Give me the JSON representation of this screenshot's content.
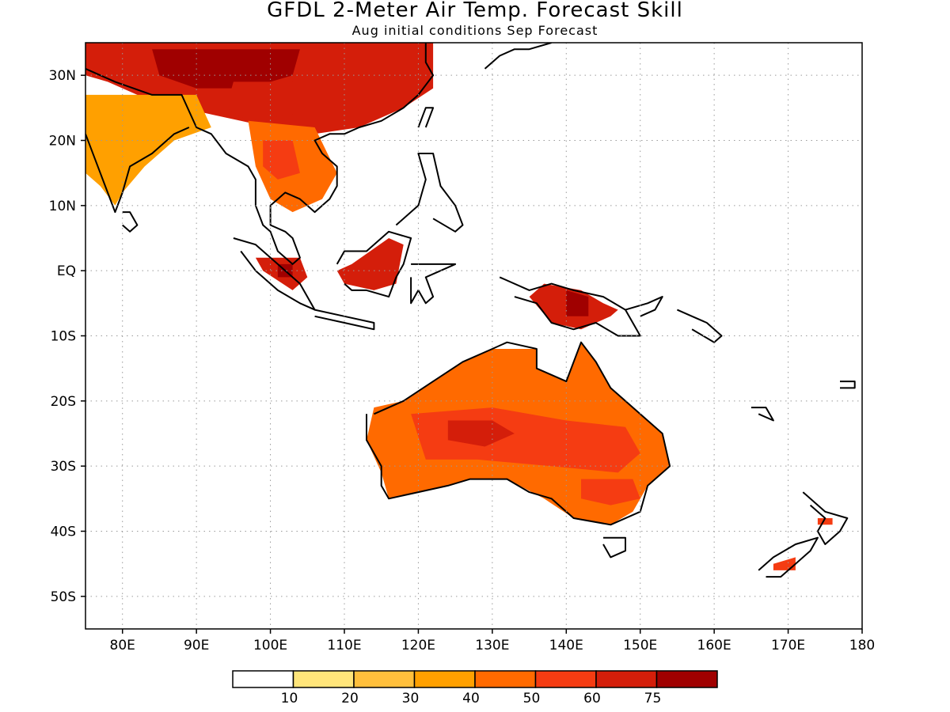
{
  "title": "GFDL 2-Meter Air Temp. Forecast Skill",
  "subtitle": "Aug initial conditions  Sep Forecast",
  "map": {
    "lon_range": [
      75,
      180
    ],
    "lat_range": [
      -55,
      35
    ],
    "lon_ticks": [
      {
        "value": 80,
        "label": "80E"
      },
      {
        "value": 90,
        "label": "90E"
      },
      {
        "value": 100,
        "label": "100E"
      },
      {
        "value": 110,
        "label": "110E"
      },
      {
        "value": 120,
        "label": "120E"
      },
      {
        "value": 130,
        "label": "130E"
      },
      {
        "value": 140,
        "label": "140E"
      },
      {
        "value": 150,
        "label": "150E"
      },
      {
        "value": 160,
        "label": "160E"
      },
      {
        "value": 170,
        "label": "170E"
      },
      {
        "value": 180,
        "label": "180"
      }
    ],
    "lat_ticks": [
      {
        "value": 30,
        "label": "30N"
      },
      {
        "value": 20,
        "label": "20N"
      },
      {
        "value": 10,
        "label": "10N"
      },
      {
        "value": 0,
        "label": "EQ"
      },
      {
        "value": -10,
        "label": "10S"
      },
      {
        "value": -20,
        "label": "20S"
      },
      {
        "value": -30,
        "label": "30S"
      },
      {
        "value": -40,
        "label": "40S"
      },
      {
        "value": -50,
        "label": "50S"
      }
    ],
    "grid": "dotted"
  },
  "colorbar": {
    "bins": [
      {
        "color": "#ffffff"
      },
      {
        "color": "#ffe57a"
      },
      {
        "color": "#ffbf3c"
      },
      {
        "color": "#ffa000"
      },
      {
        "color": "#ff6a00"
      },
      {
        "color": "#f53c12"
      },
      {
        "color": "#d41e0a"
      },
      {
        "color": "#a00000"
      }
    ],
    "labels": [
      "10",
      "20",
      "30",
      "40",
      "50",
      "60",
      "75"
    ]
  },
  "regions": [
    {
      "name": "Tibet / China",
      "level": 6,
      "poly": [
        [
          75,
          35
        ],
        [
          122,
          35
        ],
        [
          122,
          28
        ],
        [
          118,
          25
        ],
        [
          112,
          22
        ],
        [
          106,
          21
        ],
        [
          100,
          22
        ],
        [
          96,
          23
        ],
        [
          92,
          24
        ],
        [
          88,
          25
        ],
        [
          84,
          26
        ],
        [
          78,
          29
        ],
        [
          75,
          30
        ]
      ]
    },
    {
      "name": "Tibet core",
      "level": 7,
      "poly": [
        [
          84,
          34
        ],
        [
          104,
          34
        ],
        [
          103,
          30
        ],
        [
          97,
          28
        ],
        [
          90,
          28
        ],
        [
          85,
          30
        ]
      ]
    },
    {
      "name": "Yunnan",
      "level": 6,
      "poly": [
        [
          95,
          29
        ],
        [
          103,
          29
        ],
        [
          103,
          24
        ],
        [
          97,
          23
        ],
        [
          94,
          25
        ]
      ]
    },
    {
      "name": "India",
      "level": 3,
      "poly": [
        [
          75,
          27
        ],
        [
          90,
          27
        ],
        [
          92,
          22
        ],
        [
          87,
          20
        ],
        [
          83,
          16
        ],
        [
          80,
          12
        ],
        [
          79,
          10
        ],
        [
          77,
          13
        ],
        [
          75,
          15
        ]
      ]
    },
    {
      "name": "Indochina",
      "level": 4,
      "poly": [
        [
          97,
          23
        ],
        [
          106,
          22
        ],
        [
          109,
          15
        ],
        [
          107,
          11
        ],
        [
          103,
          9
        ],
        [
          100,
          11
        ],
        [
          98,
          16
        ]
      ]
    },
    {
      "name": "Thailand core",
      "level": 5,
      "poly": [
        [
          99,
          20
        ],
        [
          103,
          20
        ],
        [
          104,
          15
        ],
        [
          101,
          14
        ],
        [
          99,
          16
        ]
      ]
    },
    {
      "name": "Sumatra",
      "level": 6,
      "poly": [
        [
          98,
          2
        ],
        [
          104,
          2
        ],
        [
          105,
          -1
        ],
        [
          103,
          -3
        ],
        [
          99,
          0
        ]
      ]
    },
    {
      "name": "Sumatra core",
      "level": 7,
      "poly": [
        [
          101,
          1
        ],
        [
          103,
          1
        ],
        [
          103,
          -1
        ],
        [
          101,
          -1
        ]
      ]
    },
    {
      "name": "Borneo",
      "level": 6,
      "poly": [
        [
          111,
          1
        ],
        [
          116,
          5
        ],
        [
          118,
          4
        ],
        [
          117,
          -2
        ],
        [
          114,
          -3
        ],
        [
          110,
          -2
        ],
        [
          109,
          0
        ]
      ]
    },
    {
      "name": "New Guinea",
      "level": 6,
      "poly": [
        [
          137,
          -2
        ],
        [
          142,
          -3
        ],
        [
          145,
          -5
        ],
        [
          147,
          -6
        ],
        [
          146,
          -7
        ],
        [
          142,
          -9
        ],
        [
          138,
          -8
        ],
        [
          135,
          -4
        ]
      ]
    },
    {
      "name": "New Guinea core",
      "level": 7,
      "poly": [
        [
          140,
          -3
        ],
        [
          143,
          -4
        ],
        [
          143,
          -7
        ],
        [
          140,
          -7
        ]
      ]
    },
    {
      "name": "Australia",
      "level": 4,
      "poly": [
        [
          114,
          -21
        ],
        [
          118,
          -20
        ],
        [
          122,
          -17
        ],
        [
          126,
          -14
        ],
        [
          130,
          -12
        ],
        [
          136,
          -12
        ],
        [
          136,
          -15
        ],
        [
          140,
          -17
        ],
        [
          142,
          -11
        ],
        [
          144,
          -14
        ],
        [
          146,
          -18
        ],
        [
          149,
          -21
        ],
        [
          153,
          -25
        ],
        [
          154,
          -30
        ],
        [
          151,
          -33
        ],
        [
          149,
          -37
        ],
        [
          146,
          -39
        ],
        [
          141,
          -38
        ],
        [
          137,
          -35
        ],
        [
          132,
          -32
        ],
        [
          127,
          -32
        ],
        [
          124,
          -33
        ],
        [
          120,
          -34
        ],
        [
          116,
          -35
        ],
        [
          115,
          -31
        ],
        [
          113,
          -26
        ]
      ]
    },
    {
      "name": "Central Australia",
      "level": 5,
      "poly": [
        [
          119,
          -22
        ],
        [
          130,
          -21
        ],
        [
          140,
          -23
        ],
        [
          148,
          -24
        ],
        [
          150,
          -28
        ],
        [
          147,
          -31
        ],
        [
          138,
          -30
        ],
        [
          128,
          -29
        ],
        [
          121,
          -29
        ]
      ]
    },
    {
      "name": "Australia core",
      "level": 6,
      "poly": [
        [
          124,
          -23
        ],
        [
          130,
          -23
        ],
        [
          133,
          -25
        ],
        [
          129,
          -27
        ],
        [
          124,
          -26
        ]
      ]
    },
    {
      "name": "SE Australia",
      "level": 5,
      "poly": [
        [
          142,
          -32
        ],
        [
          149,
          -32
        ],
        [
          150,
          -35
        ],
        [
          146,
          -36
        ],
        [
          142,
          -35
        ]
      ]
    },
    {
      "name": "NZ South Island",
      "level": 5,
      "poly": [
        [
          168,
          -45
        ],
        [
          171,
          -44
        ],
        [
          171,
          -46
        ],
        [
          168,
          -46
        ]
      ]
    },
    {
      "name": "NZ North Island",
      "level": 5,
      "poly": [
        [
          174,
          -38
        ],
        [
          176,
          -38
        ],
        [
          176,
          -39
        ],
        [
          174,
          -39
        ]
      ]
    }
  ]
}
